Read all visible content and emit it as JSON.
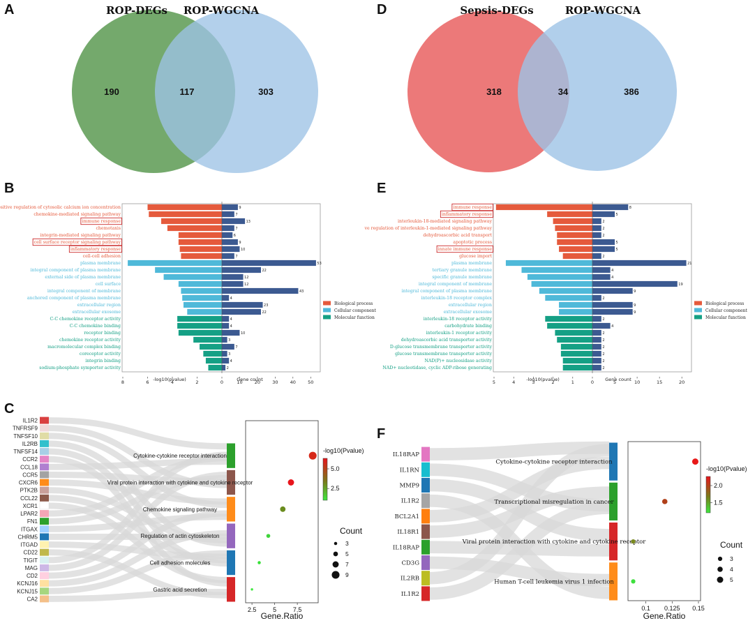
{
  "panels": {
    "A": "A",
    "B": "B",
    "C": "C",
    "D": "D",
    "E": "E",
    "F": "F"
  },
  "venn_A": {
    "left_title": "ROP-DEGs",
    "right_title": "ROP-WGCNA",
    "left_only": "190",
    "overlap": "117",
    "right_only": "303",
    "left_color": "#5c9a52",
    "right_color": "#9dc3e6"
  },
  "venn_D": {
    "left_title": "Sepsis-DEGs",
    "right_title": "ROP-WGCNA",
    "left_only": "318",
    "overlap": "34",
    "right_only": "386",
    "left_color": "#ea6a6a",
    "right_color": "#9dc3e6"
  },
  "colors": {
    "bp": "#e55a3c",
    "cc": "#4fb9d9",
    "mf": "#15a085",
    "count_bar": "#3c5a91",
    "highlight": "#cc2a2a"
  },
  "chart_data": [
    {
      "type": "bar",
      "panel": "B",
      "title": "",
      "xlabel_left": "-log10(pvalue)",
      "xlabel_right": "Gene count",
      "left_ticks": [
        "8",
        "6",
        "4",
        "2",
        "0"
      ],
      "right_ticks": [
        "0",
        "10",
        "20",
        "30",
        "40",
        "50"
      ],
      "left_max": 8,
      "right_max": 55,
      "legend": [
        "Biological process",
        "Cellular component",
        "Molecular function"
      ],
      "terms": [
        {
          "label": "positive regulation of cytosolic calcium ion concentration",
          "cat": "bp",
          "neglogp": 6.0,
          "count": 9,
          "boxed": false
        },
        {
          "label": "chemokine-mediated signaling pathway",
          "cat": "bp",
          "neglogp": 5.9,
          "count": 7,
          "boxed": false
        },
        {
          "label": "immune response",
          "cat": "bp",
          "neglogp": 4.9,
          "count": 13,
          "boxed": true
        },
        {
          "label": "chemotaxis",
          "cat": "bp",
          "neglogp": 4.4,
          "count": 7,
          "boxed": false
        },
        {
          "label": "integrin-mediated signaling pathway",
          "cat": "bp",
          "neglogp": 3.5,
          "count": 6,
          "boxed": false
        },
        {
          "label": "cell surface receptor signaling pathway",
          "cat": "bp",
          "neglogp": 3.5,
          "count": 9,
          "boxed": true
        },
        {
          "label": "inflammatory response",
          "cat": "bp",
          "neglogp": 3.4,
          "count": 10,
          "boxed": true
        },
        {
          "label": "cell-cell adhesion",
          "cat": "bp",
          "neglogp": 3.3,
          "count": 7,
          "boxed": false
        },
        {
          "label": "plasma membrane",
          "cat": "cc",
          "neglogp": 7.6,
          "count": 53,
          "boxed": false
        },
        {
          "label": "integral component of plasma membrane",
          "cat": "cc",
          "neglogp": 5.4,
          "count": 22,
          "boxed": false
        },
        {
          "label": "external side of plasma membrane",
          "cat": "cc",
          "neglogp": 4.7,
          "count": 12,
          "boxed": false
        },
        {
          "label": "cell surface",
          "cat": "cc",
          "neglogp": 3.5,
          "count": 12,
          "boxed": false
        },
        {
          "label": "integral component of membrane",
          "cat": "cc",
          "neglogp": 3.3,
          "count": 43,
          "boxed": false
        },
        {
          "label": "anchored component of plasma membrane",
          "cat": "cc",
          "neglogp": 3.2,
          "count": 4,
          "boxed": false
        },
        {
          "label": "extracellular region",
          "cat": "cc",
          "neglogp": 3.1,
          "count": 23,
          "boxed": false
        },
        {
          "label": "extracellular exosome",
          "cat": "cc",
          "neglogp": 2.8,
          "count": 22,
          "boxed": false
        },
        {
          "label": "C-C chemokine receptor activity",
          "cat": "mf",
          "neglogp": 3.6,
          "count": 4,
          "boxed": false
        },
        {
          "label": "C-C chemokine binding",
          "cat": "mf",
          "neglogp": 3.6,
          "count": 4,
          "boxed": false
        },
        {
          "label": "receptor binding",
          "cat": "mf",
          "neglogp": 3.5,
          "count": 10,
          "boxed": false
        },
        {
          "label": "chemokine receptor activity",
          "cat": "mf",
          "neglogp": 2.3,
          "count": 3,
          "boxed": false
        },
        {
          "label": "macromolecular complex binding",
          "cat": "mf",
          "neglogp": 1.8,
          "count": 7,
          "boxed": false
        },
        {
          "label": "coreceptor activity",
          "cat": "mf",
          "neglogp": 1.5,
          "count": 3,
          "boxed": false
        },
        {
          "label": "integrin binding",
          "cat": "mf",
          "neglogp": 1.3,
          "count": 4,
          "boxed": false
        },
        {
          "label": "sodium:phosphate symporter activity",
          "cat": "mf",
          "neglogp": 1.1,
          "count": 2,
          "boxed": false
        }
      ]
    },
    {
      "type": "bar",
      "panel": "E",
      "title": "",
      "xlabel_left": "-log10(pvalue)",
      "xlabel_right": "Gene count",
      "left_ticks": [
        "5",
        "4",
        "3",
        "2",
        "1",
        "0"
      ],
      "right_ticks": [
        "0",
        "5",
        "10",
        "15",
        "20"
      ],
      "left_max": 5,
      "right_max": 22,
      "legend": [
        "Biological process",
        "Cellular component",
        "Molecular function"
      ],
      "terms": [
        {
          "label": "immune response",
          "cat": "bp",
          "neglogp": 4.9,
          "count": 8,
          "boxed": true
        },
        {
          "label": "inflammatory response",
          "cat": "bp",
          "neglogp": 2.3,
          "count": 5,
          "boxed": true
        },
        {
          "label": "interleukin-18-mediated signaling pathway",
          "cat": "bp",
          "neglogp": 2.0,
          "count": 2,
          "boxed": false
        },
        {
          "label": "ve regulation of interleukin-1-mediated signaling pathway",
          "cat": "bp",
          "neglogp": 1.9,
          "count": 2,
          "boxed": false
        },
        {
          "label": "dehydroascorbic acid transport",
          "cat": "bp",
          "neglogp": 1.8,
          "count": 2,
          "boxed": false
        },
        {
          "label": "apoptotic process",
          "cat": "bp",
          "neglogp": 1.8,
          "count": 5,
          "boxed": false
        },
        {
          "label": "innate immune response",
          "cat": "bp",
          "neglogp": 1.7,
          "count": 5,
          "boxed": true
        },
        {
          "label": "glucose import",
          "cat": "bp",
          "neglogp": 1.5,
          "count": 2,
          "boxed": false
        },
        {
          "label": "plasma membrane",
          "cat": "cc",
          "neglogp": 4.4,
          "count": 21,
          "boxed": false
        },
        {
          "label": "tertiary granule membrane",
          "cat": "cc",
          "neglogp": 3.6,
          "count": 4,
          "boxed": false
        },
        {
          "label": "specific granule membrane",
          "cat": "cc",
          "neglogp": 3.3,
          "count": 4,
          "boxed": false
        },
        {
          "label": "integral component of membrane",
          "cat": "cc",
          "neglogp": 3.1,
          "count": 19,
          "boxed": false
        },
        {
          "label": "integral component of plasma membrane",
          "cat": "cc",
          "neglogp": 2.7,
          "count": 9,
          "boxed": false
        },
        {
          "label": "interleukin-18 receptor complex",
          "cat": "cc",
          "neglogp": 2.4,
          "count": 2,
          "boxed": false
        },
        {
          "label": "extracellular region",
          "cat": "cc",
          "neglogp": 1.7,
          "count": 9,
          "boxed": false
        },
        {
          "label": "extracellular exosome",
          "cat": "cc",
          "neglogp": 1.7,
          "count": 9,
          "boxed": false
        },
        {
          "label": "interleukin-18 receptor activity",
          "cat": "mf",
          "neglogp": 2.4,
          "count": 2,
          "boxed": false
        },
        {
          "label": "carbohydrate binding",
          "cat": "mf",
          "neglogp": 2.3,
          "count": 4,
          "boxed": false
        },
        {
          "label": "interleukin-1 receptor activity",
          "cat": "mf",
          "neglogp": 1.9,
          "count": 2,
          "boxed": false
        },
        {
          "label": "dehydroascorbic acid transporter activity",
          "cat": "mf",
          "neglogp": 1.8,
          "count": 2,
          "boxed": false
        },
        {
          "label": "D-glucose transmembrane transporter activity",
          "cat": "mf",
          "neglogp": 1.6,
          "count": 2,
          "boxed": false
        },
        {
          "label": "glucose transmembrane transporter activity",
          "cat": "mf",
          "neglogp": 1.6,
          "count": 2,
          "boxed": false
        },
        {
          "label": "NAD(P)+ nucleosidase activity",
          "cat": "mf",
          "neglogp": 1.5,
          "count": 2,
          "boxed": false
        },
        {
          "label": "NAD+ nucleotidase, cyclic ADP-ribose generating",
          "cat": "mf",
          "neglogp": 1.5,
          "count": 2,
          "boxed": false
        }
      ]
    },
    {
      "type": "scatter",
      "panel": "C",
      "xlabel": "Gene.Ratio",
      "xlim": [
        1.8,
        9.8
      ],
      "xticks": [
        2.5,
        5.0,
        7.5
      ],
      "colorbar_title": "-log10(Pvalue)",
      "colorbar_ticks": [
        "5.0",
        "2.5"
      ],
      "count_title": "Count",
      "count_levels": [
        "3",
        "5",
        "7",
        "9"
      ],
      "genes": [
        "IL1R2",
        "TNFRSF9",
        "TNFSF10",
        "IL2RB",
        "TNFSF14",
        "CCR2",
        "CCL18",
        "CCR5",
        "CXCR6",
        "PTK2B",
        "CCL22",
        "XCR1",
        "LPAR2",
        "FN1",
        "ITGAX",
        "CHRM5",
        "ITGAD",
        "CD22",
        "TIGIT",
        "MAG",
        "CD2",
        "KCNJ16",
        "KCNJ15",
        "CA2"
      ],
      "gene_colors": [
        "#d94040",
        "#f0d9d9",
        "#e0dca5",
        "#31c0cc",
        "#a7cfe6",
        "#e485c6",
        "#b07fd0",
        "#a3a3a3",
        "#ff8c1a",
        "#c9a09a",
        "#8c5a4a",
        "#ffffff",
        "#f3a6b6",
        "#2ca02c",
        "#9fd0ff",
        "#1f77b4",
        "#fff2b0",
        "#c0b84c",
        "#d8f0f0",
        "#cdb8e6",
        "#ffd0e0",
        "#ffe0a0",
        "#a6d67f",
        "#f4c089"
      ],
      "points": [
        {
          "pathway": "Cytokine-cytokine receptor interaction",
          "ratio": 9.2,
          "count": 9,
          "neglogp": 5.2,
          "color": "#d62818",
          "bar_color": "#2ca02c"
        },
        {
          "pathway": "Viral protein interaction with cytokine and cytokine receptor",
          "ratio": 6.8,
          "count": 7,
          "neglogp": 4.9,
          "color": "#e8151c",
          "bar_color": "#8c564b"
        },
        {
          "pathway": "Chemokine signaling pathway",
          "ratio": 5.9,
          "count": 6,
          "neglogp": 3.6,
          "color": "#6a8c1e",
          "bar_color": "#ff8c1a"
        },
        {
          "pathway": "Regulation of actin cytoskeleton",
          "ratio": 4.3,
          "count": 4,
          "neglogp": 2.2,
          "color": "#3fd43a",
          "bar_color": "#9467bd"
        },
        {
          "pathway": "Cell adhesion molecules",
          "ratio": 3.3,
          "count": 3,
          "neglogp": 2.0,
          "color": "#36e036",
          "bar_color": "#1f77b4"
        },
        {
          "pathway": "Gastric acid secretion",
          "ratio": 2.5,
          "count": 2,
          "neglogp": 1.9,
          "color": "#3ee83e",
          "bar_color": "#d62728"
        }
      ]
    },
    {
      "type": "scatter",
      "panel": "F",
      "xlabel": "Gene.Ratio",
      "xlim": [
        0.083,
        0.152
      ],
      "xticks": [
        0.1,
        0.125,
        0.15
      ],
      "colorbar_title": "-log10(Pvalue)",
      "colorbar_ticks": [
        "2.0",
        "1.5"
      ],
      "count_title": "Count",
      "count_levels": [
        "3",
        "4",
        "5"
      ],
      "genes": [
        "IL18RAP",
        "IL1RN",
        "MMP9",
        "IL1R2",
        "BCL2A1",
        "IL18R1",
        "IL18RAP",
        "CD3G",
        "IL2RB",
        "IL1R2"
      ],
      "gene_colors": [
        "#e377c2",
        "#17becf",
        "#1f77b4",
        "#a5a5a5",
        "#ff7f0e",
        "#8c564b",
        "#2ca02c",
        "#9467bd",
        "#bcbd22",
        "#d62728"
      ],
      "points": [
        {
          "pathway": "Cytokine-cytokine receptor interaction",
          "ratio": 0.147,
          "count": 5,
          "neglogp": 2.4,
          "color": "#e81818",
          "bar_color": "#1f77b4"
        },
        {
          "pathway": "Transcriptional misregulation in cancer",
          "ratio": 0.118,
          "count": 4,
          "neglogp": 2.1,
          "color": "#b0401a",
          "bar_color": "#2ca02c"
        },
        {
          "pathway": "Viral protein interaction with cytokine and cytokine receptor",
          "ratio": 0.088,
          "count": 3,
          "neglogp": 1.6,
          "color": "#7a8a20",
          "bar_color": "#d62728"
        },
        {
          "pathway": "Human T-cell leukemia virus 1 infection",
          "ratio": 0.088,
          "count": 3,
          "neglogp": 1.4,
          "color": "#3ee03e",
          "bar_color": "#ff8c1a"
        }
      ]
    }
  ]
}
